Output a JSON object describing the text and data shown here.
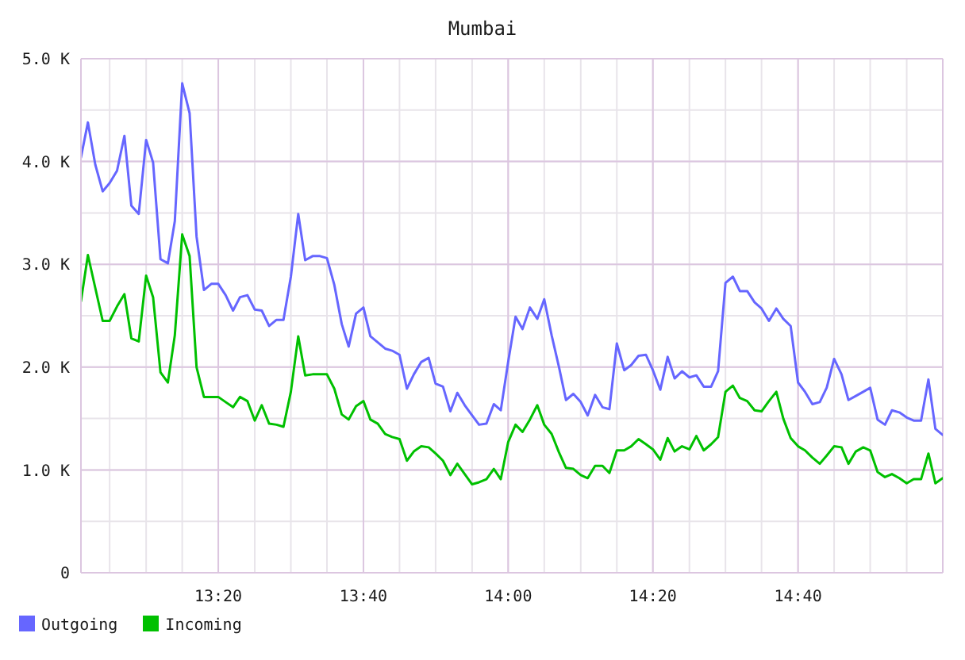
{
  "chart_data": {
    "type": "line",
    "title": "Mumbai",
    "x": [
      13.017,
      13.033,
      13.05,
      13.067,
      13.083,
      13.1,
      13.117,
      13.133,
      13.15,
      13.167,
      13.183,
      13.2,
      13.217,
      13.233,
      13.25,
      13.267,
      13.283,
      13.3,
      13.317,
      13.333,
      13.35,
      13.367,
      13.383,
      13.4,
      13.417,
      13.433,
      13.45,
      13.467,
      13.483,
      13.5,
      13.517,
      13.533,
      13.55,
      13.567,
      13.583,
      13.6,
      13.617,
      13.633,
      13.65,
      13.667,
      13.683,
      13.7,
      13.717,
      13.733,
      13.75,
      13.767,
      13.783,
      13.8,
      13.817,
      13.833,
      13.85,
      13.867,
      13.883,
      13.9,
      13.917,
      13.933,
      13.95,
      13.967,
      13.983,
      14,
      14.017,
      14.033,
      14.05,
      14.067,
      14.083,
      14.1,
      14.117,
      14.133,
      14.15,
      14.167,
      14.183,
      14.2,
      14.217,
      14.233,
      14.25,
      14.267,
      14.283,
      14.3,
      14.317,
      14.333,
      14.35,
      14.367,
      14.383,
      14.4,
      14.417,
      14.433,
      14.45,
      14.467,
      14.483,
      14.5,
      14.517,
      14.533,
      14.55,
      14.567,
      14.583,
      14.6,
      14.617,
      14.633,
      14.65,
      14.667,
      14.683,
      14.7,
      14.717,
      14.733,
      14.75,
      14.767,
      14.783,
      14.8,
      14.817,
      14.833,
      14.85,
      14.867,
      14.883,
      14.9,
      14.917,
      14.933,
      14.95,
      14.967,
      14.983,
      15
    ],
    "series": [
      {
        "name": "Outgoing",
        "color": "#6666ff",
        "values": [
          4040,
          4380,
          3970,
          3710,
          3790,
          3910,
          4250,
          3570,
          3490,
          4210,
          3990,
          3050,
          3010,
          3420,
          4760,
          4470,
          3270,
          2750,
          2810,
          2810,
          2700,
          2550,
          2680,
          2700,
          2560,
          2550,
          2400,
          2460,
          2460,
          2880,
          3490,
          3040,
          3080,
          3080,
          3060,
          2800,
          2420,
          2200,
          2520,
          2580,
          2300,
          2240,
          2180,
          2160,
          2120,
          1790,
          1930,
          2050,
          2090,
          1840,
          1810,
          1570,
          1750,
          1630,
          1530,
          1440,
          1450,
          1640,
          1580,
          2050,
          2490,
          2370,
          2580,
          2470,
          2660,
          2310,
          2000,
          1680,
          1740,
          1660,
          1530,
          1730,
          1610,
          1590,
          2230,
          1970,
          2020,
          2110,
          2120,
          1970,
          1780,
          2100,
          1890,
          1960,
          1900,
          1920,
          1810,
          1810,
          1960,
          2820,
          2880,
          2740,
          2740,
          2630,
          2570,
          2450,
          2570,
          2470,
          2400,
          1850,
          1760,
          1640,
          1660,
          1800,
          2080,
          1930,
          1680,
          1720,
          1760,
          1800,
          1490,
          1440,
          1580,
          1560,
          1510,
          1480,
          1480,
          1880,
          1400,
          1340
        ]
      },
      {
        "name": "Incoming",
        "color": "#00c000",
        "values": [
          2640,
          3090,
          2770,
          2450,
          2450,
          2590,
          2710,
          2280,
          2250,
          2890,
          2680,
          1950,
          1850,
          2310,
          3290,
          3080,
          2000,
          1710,
          1710,
          1710,
          1660,
          1610,
          1710,
          1670,
          1480,
          1630,
          1450,
          1440,
          1420,
          1760,
          2300,
          1920,
          1930,
          1930,
          1930,
          1790,
          1540,
          1490,
          1620,
          1670,
          1490,
          1450,
          1350,
          1320,
          1300,
          1090,
          1180,
          1230,
          1220,
          1160,
          1090,
          950,
          1060,
          960,
          860,
          880,
          910,
          1010,
          910,
          1270,
          1440,
          1370,
          1490,
          1630,
          1440,
          1350,
          1170,
          1020,
          1010,
          950,
          920,
          1040,
          1040,
          970,
          1190,
          1190,
          1230,
          1300,
          1250,
          1200,
          1100,
          1310,
          1180,
          1230,
          1200,
          1330,
          1190,
          1250,
          1320,
          1760,
          1820,
          1700,
          1670,
          1580,
          1570,
          1670,
          1760,
          1500,
          1310,
          1230,
          1190,
          1120,
          1060,
          1140,
          1230,
          1220,
          1060,
          1180,
          1220,
          1190,
          980,
          930,
          960,
          920,
          870,
          910,
          910,
          1160,
          870,
          920
        ]
      }
    ],
    "xlim": [
      13.017,
      15
    ],
    "xticks": [
      {
        "value": 13.083,
        "label": null
      },
      {
        "value": 13.167,
        "label": null
      },
      {
        "value": 13.25,
        "label": null
      },
      {
        "value": 13.333,
        "label": "13:20"
      },
      {
        "value": 13.417,
        "label": null
      },
      {
        "value": 13.5,
        "label": null
      },
      {
        "value": 13.583,
        "label": null
      },
      {
        "value": 13.667,
        "label": "13:40"
      },
      {
        "value": 13.75,
        "label": null
      },
      {
        "value": 13.833,
        "label": null
      },
      {
        "value": 13.917,
        "label": null
      },
      {
        "value": 14,
        "label": "14:00"
      },
      {
        "value": 14.083,
        "label": null
      },
      {
        "value": 14.167,
        "label": null
      },
      {
        "value": 14.25,
        "label": null
      },
      {
        "value": 14.333,
        "label": "14:20"
      },
      {
        "value": 14.417,
        "label": null
      },
      {
        "value": 14.5,
        "label": null
      },
      {
        "value": 14.583,
        "label": null
      },
      {
        "value": 14.667,
        "label": "14:40"
      },
      {
        "value": 14.75,
        "label": null
      },
      {
        "value": 14.833,
        "label": null
      },
      {
        "value": 14.917,
        "label": null
      }
    ],
    "ylim": [
      0,
      5000
    ],
    "yticks": [
      0,
      {
        "value": 500,
        "label": null
      },
      {
        "value": 1000,
        "label": "1.0 K"
      },
      {
        "value": 1500,
        "label": null
      },
      {
        "value": 2000,
        "label": "2.0 K"
      },
      {
        "value": 2500,
        "label": null
      },
      {
        "value": 3000,
        "label": "3.0 K"
      },
      {
        "value": 3500,
        "label": null
      },
      {
        "value": 4000,
        "label": "4.0 K"
      },
      {
        "value": 4500,
        "label": null
      },
      {
        "value": 5000,
        "label": "5.0 K"
      }
    ],
    "grid": true,
    "legend": "bottom left",
    "marker": "none"
  }
}
